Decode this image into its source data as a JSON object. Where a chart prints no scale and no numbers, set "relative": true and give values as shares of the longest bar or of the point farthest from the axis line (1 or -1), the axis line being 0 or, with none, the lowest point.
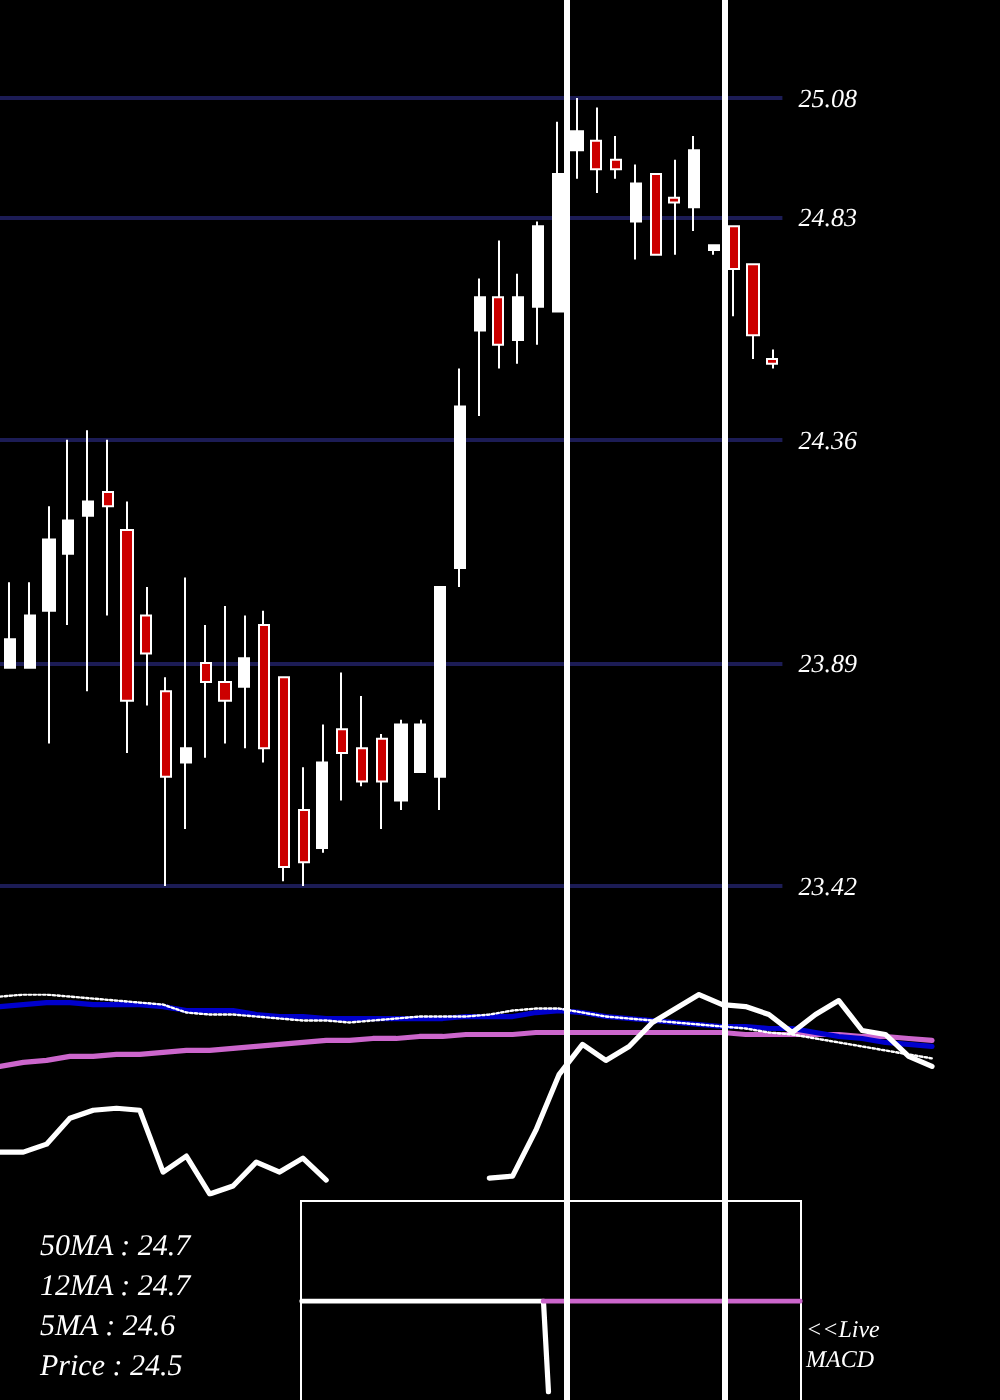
{
  "chart_data": [
    {
      "type": "candlestick",
      "categories": [
        null,
        null,
        null,
        null,
        null,
        null,
        null,
        null,
        null,
        null,
        null,
        null,
        null,
        null,
        null,
        null,
        null,
        null,
        null,
        null,
        null,
        null,
        null,
        null,
        null,
        null,
        null,
        null,
        null,
        null,
        null,
        null,
        null,
        null,
        null,
        null,
        null,
        null,
        null,
        null
      ],
      "ohlc": [
        [
          23.88,
          24.06,
          23.88,
          23.94
        ],
        [
          23.88,
          24.06,
          23.88,
          23.99
        ],
        [
          24.0,
          24.22,
          23.72,
          24.15
        ],
        [
          24.12,
          24.36,
          23.97,
          24.19
        ],
        [
          24.2,
          24.38,
          23.83,
          24.23
        ],
        [
          24.25,
          24.36,
          23.99,
          24.22
        ],
        [
          24.17,
          24.23,
          23.7,
          23.81
        ],
        [
          23.99,
          24.05,
          23.8,
          23.91
        ],
        [
          23.83,
          23.86,
          23.42,
          23.65
        ],
        [
          23.68,
          24.07,
          23.54,
          23.71
        ],
        [
          23.89,
          23.97,
          23.69,
          23.85
        ],
        [
          23.85,
          24.01,
          23.72,
          23.81
        ],
        [
          23.84,
          23.99,
          23.71,
          23.9
        ],
        [
          23.97,
          24.0,
          23.68,
          23.71
        ],
        [
          23.86,
          23.86,
          23.43,
          23.46
        ],
        [
          23.58,
          23.67,
          23.42,
          23.47
        ],
        [
          23.5,
          23.76,
          23.49,
          23.68
        ],
        [
          23.75,
          23.87,
          23.6,
          23.7
        ],
        [
          23.71,
          23.82,
          23.63,
          23.64
        ],
        [
          23.73,
          23.74,
          23.54,
          23.64
        ],
        [
          23.6,
          23.77,
          23.58,
          23.76
        ],
        [
          23.66,
          23.77,
          23.66,
          23.76
        ],
        [
          23.65,
          24.05,
          23.58,
          24.05
        ],
        [
          24.09,
          24.51,
          24.05,
          24.43
        ],
        [
          24.59,
          24.7,
          24.41,
          24.66
        ],
        [
          24.66,
          24.78,
          24.51,
          24.56
        ],
        [
          24.57,
          24.71,
          24.52,
          24.66
        ],
        [
          24.64,
          24.82,
          24.56,
          24.81
        ],
        [
          24.63,
          25.03,
          24.63,
          24.92
        ],
        [
          24.97,
          25.08,
          24.91,
          25.01
        ],
        [
          24.99,
          25.06,
          24.88,
          24.93
        ],
        [
          24.95,
          25.0,
          24.91,
          24.93
        ],
        [
          24.82,
          24.94,
          24.74,
          24.9
        ],
        [
          24.92,
          24.92,
          24.75,
          24.75
        ],
        [
          24.87,
          24.95,
          24.75,
          24.86
        ],
        [
          24.85,
          25.0,
          24.8,
          24.97
        ],
        [
          24.76,
          24.77,
          24.75,
          24.77
        ],
        [
          24.81,
          24.81,
          24.62,
          24.72
        ],
        [
          24.73,
          24.73,
          24.53,
          24.58
        ],
        [
          24.53,
          24.55,
          24.51,
          24.52
        ]
      ],
      "colors": [
        "#ffffff",
        "#ffffff",
        "#ffffff",
        "#ffffff",
        "#ffffff",
        "#cc0000",
        "#cc0000",
        "#cc0000",
        "#cc0000",
        "#ffffff",
        "#cc0000",
        "#cc0000",
        "#ffffff",
        "#cc0000",
        "#cc0000",
        "#cc0000",
        "#ffffff",
        "#cc0000",
        "#cc0000",
        "#cc0000",
        "#ffffff",
        "#ffffff",
        "#ffffff",
        "#ffffff",
        "#ffffff",
        "#cc0000",
        "#ffffff",
        "#ffffff",
        "#ffffff",
        "#ffffff",
        "#cc0000",
        "#cc0000",
        "#ffffff",
        "#cc0000",
        "#cc0000",
        "#ffffff",
        "#ffffff",
        "#cc0000",
        "#cc0000",
        "#cc0000"
      ],
      "ylim": [
        23.42,
        25.08
      ],
      "yticks": [
        23.42,
        23.89,
        24.36,
        24.83,
        25.08
      ],
      "grid": "y",
      "tick_labels": "y"
    },
    {
      "type": "line",
      "relative": true,
      "categories": [
        null,
        null,
        null,
        null,
        null,
        null,
        null,
        null,
        null,
        null,
        null,
        null,
        null,
        null,
        null,
        null,
        null,
        null,
        null,
        null,
        null,
        null,
        null,
        null,
        null,
        null,
        null,
        null,
        null,
        null,
        null,
        null,
        null,
        null,
        null,
        null,
        null,
        null,
        null,
        null,
        null
      ],
      "series": [
        {
          "color": "#cc66cc",
          "values": [
            0.64,
            0.66,
            0.67,
            0.69,
            0.69,
            0.7,
            0.7,
            0.71,
            0.72,
            0.72,
            0.73,
            0.74,
            0.75,
            0.76,
            0.77,
            0.77,
            0.78,
            0.78,
            0.79,
            0.79,
            0.8,
            0.8,
            0.8,
            0.81,
            0.81,
            0.81,
            0.81,
            0.81,
            0.81,
            0.81,
            0.81,
            0.81,
            0.8,
            0.8,
            0.8,
            0.8,
            0.8,
            0.79,
            0.79,
            0.78,
            0.77
          ]
        },
        {
          "color": "#0000cc",
          "values": [
            0.94,
            0.95,
            0.96,
            0.96,
            0.95,
            0.95,
            0.95,
            0.94,
            0.92,
            0.92,
            0.92,
            0.9,
            0.89,
            0.89,
            0.88,
            0.88,
            0.88,
            0.88,
            0.88,
            0.88,
            0.89,
            0.89,
            0.89,
            0.91,
            0.92,
            0.91,
            0.89,
            0.88,
            0.87,
            0.86,
            0.85,
            0.84,
            0.84,
            0.83,
            0.83,
            0.81,
            0.79,
            0.78,
            0.76,
            0.75,
            0.74
          ]
        },
        {
          "color": "#ffffff",
          "line_style": "dotted",
          "values": [
            0.99,
            1.0,
            1.0,
            0.99,
            0.98,
            0.97,
            0.96,
            0.95,
            0.91,
            0.9,
            0.9,
            0.89,
            0.88,
            0.87,
            0.87,
            0.86,
            0.87,
            0.88,
            0.89,
            0.89,
            0.89,
            0.9,
            0.92,
            0.93,
            0.93,
            0.91,
            0.89,
            0.88,
            0.87,
            0.86,
            0.85,
            0.84,
            0.83,
            0.81,
            0.8,
            0.78,
            0.76,
            0.74,
            0.72,
            0.7,
            0.68
          ]
        },
        {
          "color": "#ffffff",
          "values": [
            0.21,
            0.21,
            0.25,
            0.38,
            0.42,
            0.43,
            0.42,
            0.11,
            0.19,
            0.0,
            0.04,
            0.16,
            0.11,
            0.18,
            0.07,
            null,
            null,
            null,
            null,
            null,
            null,
            0.08,
            0.09,
            0.32,
            0.6,
            0.75,
            0.67,
            0.74,
            0.86,
            0.93,
            1.0,
            0.95,
            0.94,
            0.9,
            0.81,
            0.9,
            0.97,
            0.82,
            0.8,
            0.69,
            0.64
          ]
        }
      ],
      "marker": "none",
      "tick_labels": false
    },
    {
      "type": "line",
      "relative": true,
      "categories": [
        null,
        null,
        null,
        null,
        null,
        null,
        null,
        null,
        null,
        null,
        null,
        null,
        null,
        null,
        null,
        null,
        null,
        null,
        null,
        null,
        null,
        null,
        null,
        null,
        null,
        null,
        null,
        null,
        null,
        null,
        null,
        null,
        null,
        null,
        null,
        null,
        null,
        null,
        null,
        null,
        null,
        null,
        null,
        null,
        null,
        null,
        null,
        null,
        null,
        null,
        null,
        null,
        null,
        null,
        null,
        null,
        null,
        null,
        null,
        null,
        null,
        null,
        null,
        null,
        null,
        null,
        null,
        null,
        null,
        null,
        null,
        null,
        null,
        null,
        null,
        null,
        null,
        null,
        null,
        null,
        null,
        null,
        null,
        null,
        null,
        null,
        null,
        null,
        null,
        null,
        null,
        null,
        null,
        null,
        null,
        null,
        null,
        null,
        null,
        null
      ],
      "series": [
        {
          "color": "#ffffff",
          "values": [
            1,
            1,
            1,
            1,
            1,
            1,
            1,
            1,
            1,
            1,
            1,
            1,
            1,
            1,
            1,
            1,
            1,
            1,
            1,
            1,
            1,
            1,
            1,
            1,
            1,
            1,
            1,
            1,
            1,
            1,
            1,
            1,
            1,
            1,
            1,
            1,
            1,
            1,
            1,
            1,
            1,
            1,
            1,
            1,
            1,
            1,
            1,
            1,
            1,
            0,
            null,
            null,
            null,
            null,
            null,
            null,
            null,
            null,
            null,
            null,
            null,
            null,
            null,
            null,
            null,
            null,
            null,
            null,
            null,
            null,
            null,
            null,
            null,
            null,
            null,
            null,
            null,
            null,
            null,
            null,
            null,
            null,
            null,
            null,
            null,
            null,
            null,
            null,
            null,
            null,
            null,
            null,
            null,
            null,
            null,
            null,
            null,
            null,
            null,
            null
          ]
        },
        {
          "color": "#cc66cc",
          "values": [
            null,
            null,
            null,
            null,
            null,
            null,
            null,
            null,
            null,
            null,
            null,
            null,
            null,
            null,
            null,
            null,
            null,
            null,
            null,
            null,
            null,
            null,
            null,
            null,
            null,
            null,
            null,
            null,
            null,
            null,
            null,
            null,
            null,
            null,
            null,
            null,
            null,
            null,
            null,
            null,
            null,
            null,
            null,
            null,
            null,
            null,
            null,
            null,
            1,
            1,
            1,
            1,
            1,
            1,
            1,
            1,
            1,
            1,
            1,
            1,
            1,
            1,
            1,
            1,
            1,
            1,
            1,
            1,
            1,
            1,
            1,
            1,
            1,
            1,
            1,
            1,
            1,
            1,
            1,
            1,
            1,
            1,
            1,
            1,
            1,
            1,
            1,
            1,
            1,
            1,
            1,
            1,
            1,
            1,
            1,
            1,
            1,
            1,
            1,
            1
          ]
        }
      ],
      "annotations": [
        "50MA : 24.7",
        "12MA : 24.7",
        "5MA : 24.6",
        "Price : 24.5",
        "<<Live MACD"
      ],
      "marker": "none",
      "tick_labels": false
    }
  ]
}
